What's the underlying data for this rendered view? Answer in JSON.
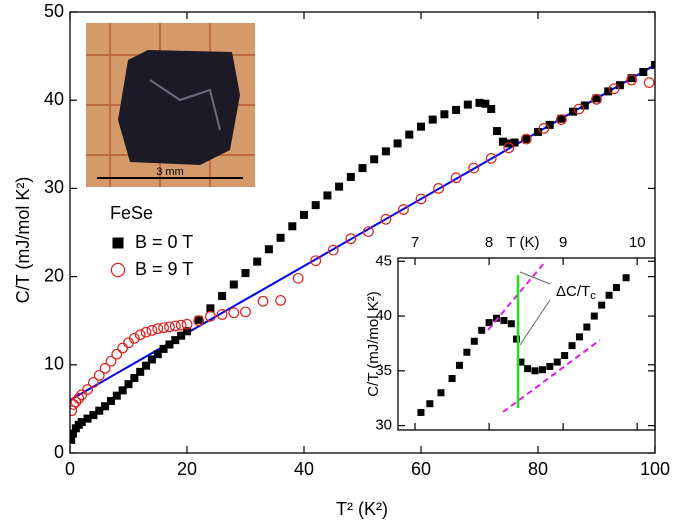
{
  "chart_data": [
    {
      "type": "scatter",
      "x_label": "T² (K²)",
      "y_label": "C/T (mJ/mol K²)",
      "xlim": [
        0,
        100
      ],
      "xticks": [
        0,
        20,
        40,
        60,
        80,
        100
      ],
      "ylim": [
        0,
        50
      ],
      "yticks": [
        0,
        10,
        20,
        30,
        40,
        50
      ],
      "legend_title": "FeSe",
      "legend": "upper left",
      "photo_label": "3 mm",
      "fit_line": {
        "color": "#0000ee",
        "x": [
          0,
          100
        ],
        "values": [
          6,
          44
        ]
      },
      "series": [
        {
          "name": "B = 0 T",
          "color": "#000000",
          "marker": "square",
          "x": [
            0.2,
            0.5,
            1,
            1.5,
            2,
            3,
            4,
            5,
            6,
            7,
            8,
            9,
            10,
            11,
            12,
            13,
            14,
            15,
            16,
            17,
            18,
            19,
            20,
            22,
            24,
            26,
            28,
            30,
            32,
            34,
            36,
            38,
            40,
            42,
            44,
            46,
            48,
            50,
            52,
            54,
            56,
            58,
            60,
            62,
            64,
            66,
            68,
            70,
            71,
            72,
            73,
            74,
            75,
            76,
            78,
            80,
            82,
            84,
            86,
            88,
            90,
            92,
            94,
            96,
            98,
            100
          ],
          "values": [
            1.5,
            2.2,
            2.8,
            3.2,
            3.5,
            3.9,
            4.3,
            4.8,
            5.3,
            5.9,
            6.5,
            7.1,
            7.8,
            8.5,
            9.2,
            9.9,
            10.6,
            11.2,
            11.8,
            12.3,
            12.8,
            13.3,
            13.8,
            15.1,
            16.4,
            17.8,
            19.1,
            20.4,
            21.7,
            23.1,
            24.4,
            25.7,
            27,
            28.1,
            29.2,
            30.2,
            31.3,
            32.3,
            33.3,
            34.2,
            35.1,
            36.1,
            37,
            37.8,
            38.4,
            38.9,
            39.5,
            39.7,
            39.6,
            39,
            36.5,
            35.3,
            35.1,
            35.2,
            35.6,
            36.4,
            37.2,
            37.9,
            38.7,
            39.4,
            40.2,
            41,
            41.7,
            42.5,
            43.2,
            44
          ]
        },
        {
          "name": "B = 9 T",
          "color": "#e02020",
          "marker": "circle",
          "x": [
            0.3,
            0.6,
            1,
            1.5,
            2,
            3,
            4,
            5,
            6,
            7,
            8,
            9,
            10,
            11,
            12,
            13,
            14,
            15,
            16,
            17,
            18,
            19,
            20,
            22,
            24,
            26,
            28,
            30,
            33,
            36,
            39,
            42,
            45,
            48,
            51,
            54,
            57,
            60,
            63,
            66,
            69,
            72,
            75,
            78,
            81,
            84,
            87,
            90,
            93,
            96,
            99
          ],
          "values": [
            4.8,
            5.5,
            5.8,
            6.2,
            6.6,
            7.2,
            8,
            8.8,
            9.6,
            10.4,
            11.2,
            11.9,
            12.5,
            13,
            13.4,
            13.7,
            13.9,
            14.1,
            14.2,
            14.3,
            14.4,
            14.5,
            14.6,
            15,
            15.5,
            15.7,
            15.9,
            16,
            17.2,
            17.3,
            19.8,
            21.8,
            23,
            24.3,
            25.1,
            26.5,
            27.6,
            28.8,
            30,
            31.2,
            32.3,
            33.4,
            34.6,
            35.6,
            36.8,
            37.8,
            39,
            40.1,
            41.3,
            42.3,
            42
          ]
        }
      ]
    },
    {
      "type": "scatter",
      "x_label": "T (K)",
      "y_label": "C/T (mJ/mol K²)",
      "xlim": [
        6.77,
        10.24
      ],
      "xticks": [
        7,
        8,
        9,
        10
      ],
      "ylim": [
        29.6,
        45.3
      ],
      "yticks": [
        30,
        35,
        40,
        45
      ],
      "annotation": {
        "text": "ΔC/T",
        "sub": "c"
      },
      "series": [
        {
          "color": "#000000",
          "marker": "square",
          "x": [
            7.08,
            7.2,
            7.35,
            7.5,
            7.6,
            7.7,
            7.8,
            7.9,
            8.0,
            8.1,
            8.2,
            8.3,
            8.37,
            8.43,
            8.52,
            8.62,
            8.72,
            8.82,
            8.92,
            9.02,
            9.12,
            9.22,
            9.32,
            9.42,
            9.52,
            9.62,
            9.72,
            9.85
          ],
          "values": [
            31.2,
            32,
            33,
            34.3,
            35.5,
            36.7,
            37.7,
            38.7,
            39.4,
            39.8,
            39.6,
            39.3,
            37.9,
            35.8,
            35.2,
            35,
            35.1,
            35.4,
            35.8,
            36.4,
            37.3,
            38.1,
            39,
            40,
            41,
            41.9,
            42.6,
            43.5
          ]
        }
      ]
    }
  ]
}
